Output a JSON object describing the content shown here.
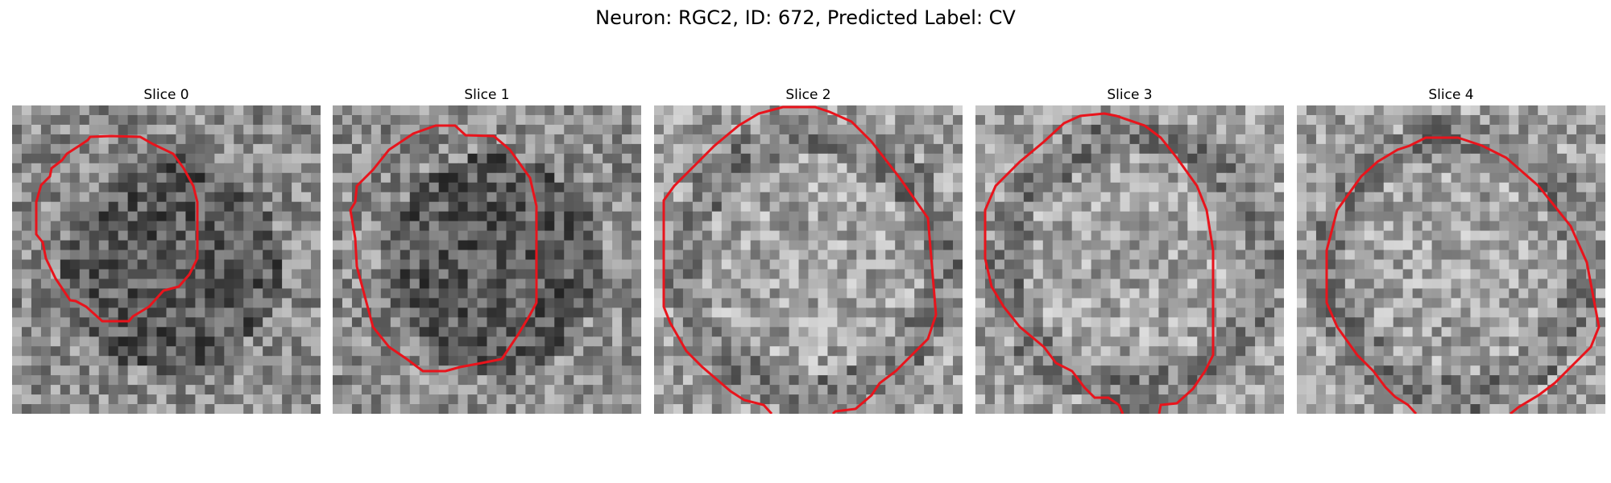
{
  "figure": {
    "title": "Neuron: RGC2, ID: 672, Predicted Label: CV",
    "contour_color": "#e8141c",
    "panels": [
      {
        "title": "Slice 0",
        "tone": "dark"
      },
      {
        "title": "Slice 1",
        "tone": "dark"
      },
      {
        "title": "Slice 2",
        "tone": "light"
      },
      {
        "title": "Slice 3",
        "tone": "light"
      },
      {
        "title": "Slice 4",
        "tone": "light"
      }
    ]
  }
}
